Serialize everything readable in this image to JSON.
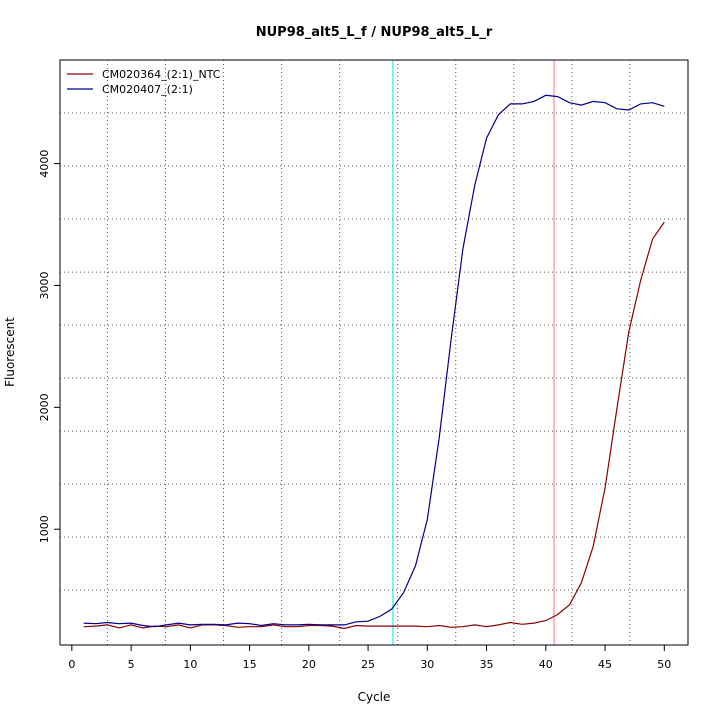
{
  "chart_data": {
    "type": "line",
    "title": "NUP98_alt5_L_f / NUP98_alt5_L_r",
    "xlabel": "Cycle",
    "ylabel": "Fluorescent",
    "xlim": [
      -1,
      52
    ],
    "ylim": [
      50,
      4850
    ],
    "x_ticks": [
      0,
      5,
      10,
      15,
      20,
      25,
      30,
      35,
      40,
      45,
      50
    ],
    "y_ticks": [
      1000,
      2000,
      3000,
      4000
    ],
    "grid": true,
    "legend_position": "top-left",
    "series": [
      {
        "name": "CM020364_(2:1)_NTC",
        "color": "#8b0000",
        "x": [
          1,
          2,
          3,
          4,
          5,
          6,
          7,
          8,
          9,
          10,
          11,
          12,
          13,
          14,
          15,
          16,
          17,
          18,
          19,
          20,
          21,
          22,
          23,
          24,
          25,
          26,
          27,
          28,
          29,
          30,
          31,
          32,
          33,
          34,
          35,
          36,
          37,
          38,
          39,
          40,
          41,
          42,
          43,
          44,
          45,
          46,
          47,
          48,
          49,
          50
        ],
        "values": [
          200,
          205,
          215,
          190,
          215,
          190,
          205,
          200,
          215,
          190,
          215,
          215,
          210,
          195,
          200,
          200,
          215,
          200,
          200,
          210,
          210,
          205,
          185,
          210,
          205,
          205,
          205,
          205,
          205,
          200,
          210,
          195,
          200,
          215,
          200,
          215,
          235,
          220,
          230,
          250,
          300,
          380,
          560,
          860,
          1340,
          1990,
          2620,
          3040,
          3380,
          3520
        ]
      },
      {
        "name": "CM020407_(2:1)",
        "color": "#00008b",
        "x": [
          1,
          2,
          3,
          4,
          5,
          6,
          7,
          8,
          9,
          10,
          11,
          12,
          13,
          14,
          15,
          16,
          17,
          18,
          19,
          20,
          21,
          22,
          23,
          24,
          25,
          26,
          27,
          28,
          29,
          30,
          31,
          32,
          33,
          34,
          35,
          36,
          37,
          38,
          39,
          40,
          41,
          42,
          43,
          44,
          45,
          46,
          47,
          48,
          49,
          50
        ],
        "values": [
          230,
          225,
          235,
          225,
          230,
          210,
          200,
          215,
          230,
          215,
          220,
          220,
          215,
          230,
          225,
          210,
          225,
          215,
          215,
          220,
          215,
          215,
          215,
          240,
          245,
          285,
          345,
          480,
          700,
          1080,
          1750,
          2550,
          3300,
          3820,
          4210,
          4400,
          4490,
          4490,
          4510,
          4560,
          4550,
          4500,
          4480,
          4510,
          4500,
          4450,
          4440,
          4490,
          4500,
          4470
        ]
      }
    ],
    "threshold_lines": [
      {
        "x": 27.1,
        "color": "#00e5ee"
      },
      {
        "x": 40.7,
        "color": "#f08080"
      }
    ]
  }
}
